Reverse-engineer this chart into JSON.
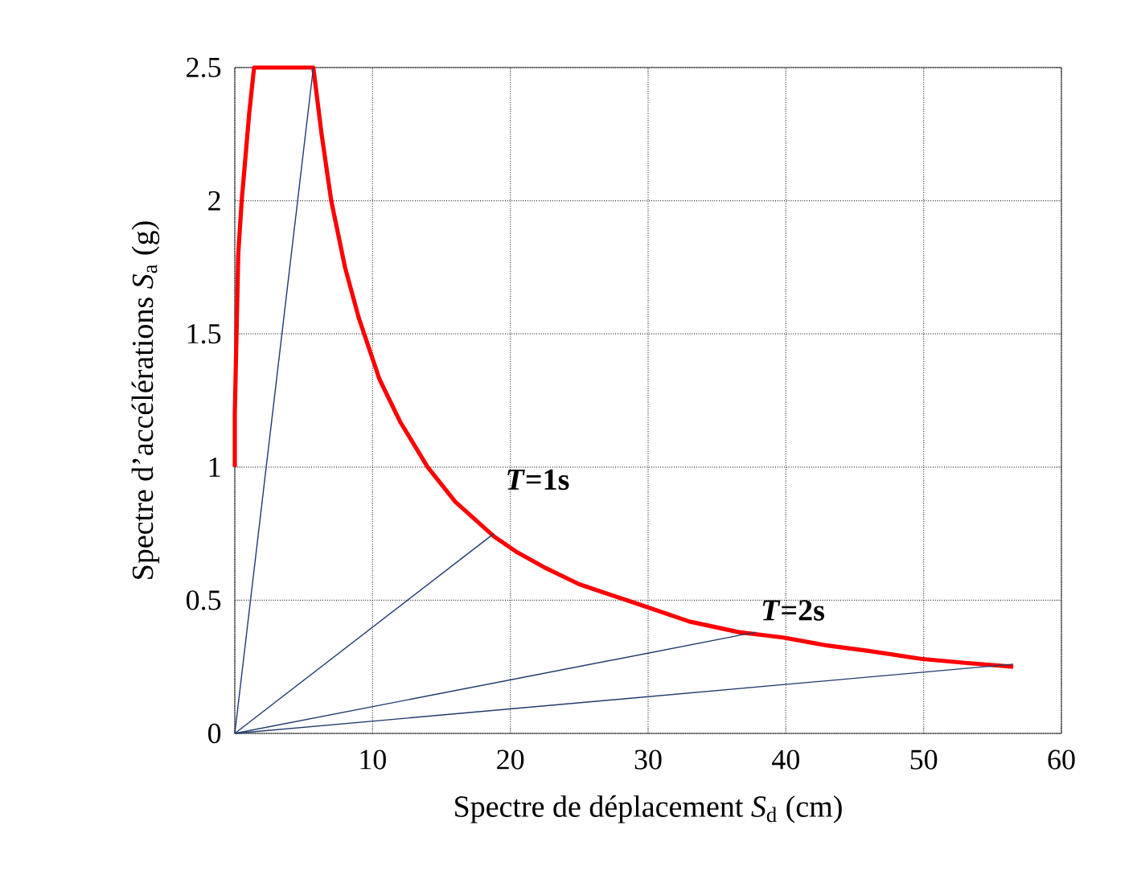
{
  "chart_data": {
    "type": "line",
    "xlabel": "Spectre de déplacement *S*$_{d}$ (cm)",
    "ylabel": "Spectre d’accélérations *S*$_{a}$ (g)",
    "xlim": [
      0,
      60
    ],
    "ylim": [
      0,
      2.5
    ],
    "xticks": [
      {
        "value": 0,
        "label": null
      },
      10,
      20,
      30,
      40,
      50,
      60
    ],
    "yticks": [
      0,
      0.5,
      1,
      1.5,
      2,
      2.5
    ],
    "grid": true,
    "marker": "none",
    "line_style": "solid",
    "series": [
      {
        "color": "#ff0000",
        "x": [
          0,
          0,
          0.25,
          0.5,
          1.05,
          1.4,
          5.7,
          6.3,
          7,
          8,
          9,
          10.5,
          12,
          14,
          16,
          18.8,
          20.5,
          22.6,
          25,
          29.6,
          33,
          36.6,
          39.8,
          43,
          46,
          49.8,
          53,
          56.5
        ],
        "values": [
          1,
          1.2,
          1.8,
          2.0,
          2.33,
          2.5,
          2.5,
          2.25,
          2.0,
          1.75,
          1.56,
          1.33,
          1.17,
          1.0,
          0.87,
          0.74,
          0.68,
          0.62,
          0.56,
          0.48,
          0.42,
          0.38,
          0.36,
          0.33,
          0.31,
          0.28,
          0.265,
          0.25
        ]
      },
      {
        "color": "#1f3a6e",
        "x": [
          0,
          5.7
        ],
        "values": [
          0,
          2.5
        ]
      },
      {
        "color": "#1f3a6e",
        "x": [
          0,
          18.8
        ],
        "values": [
          0,
          0.75
        ]
      },
      {
        "color": "#1f3a6e",
        "x": [
          0,
          37.8
        ],
        "values": [
          0,
          0.38
        ]
      },
      {
        "color": "#1f3a6e",
        "x": [
          0,
          56.5
        ],
        "values": [
          0,
          0.26
        ]
      }
    ],
    "annotations": [
      {
        "text": "*T*=1s",
        "x": 18.8,
        "y": 0.75
      },
      {
        "text": "*T*=2s",
        "x": 37.8,
        "y": 0.38
      }
    ]
  }
}
